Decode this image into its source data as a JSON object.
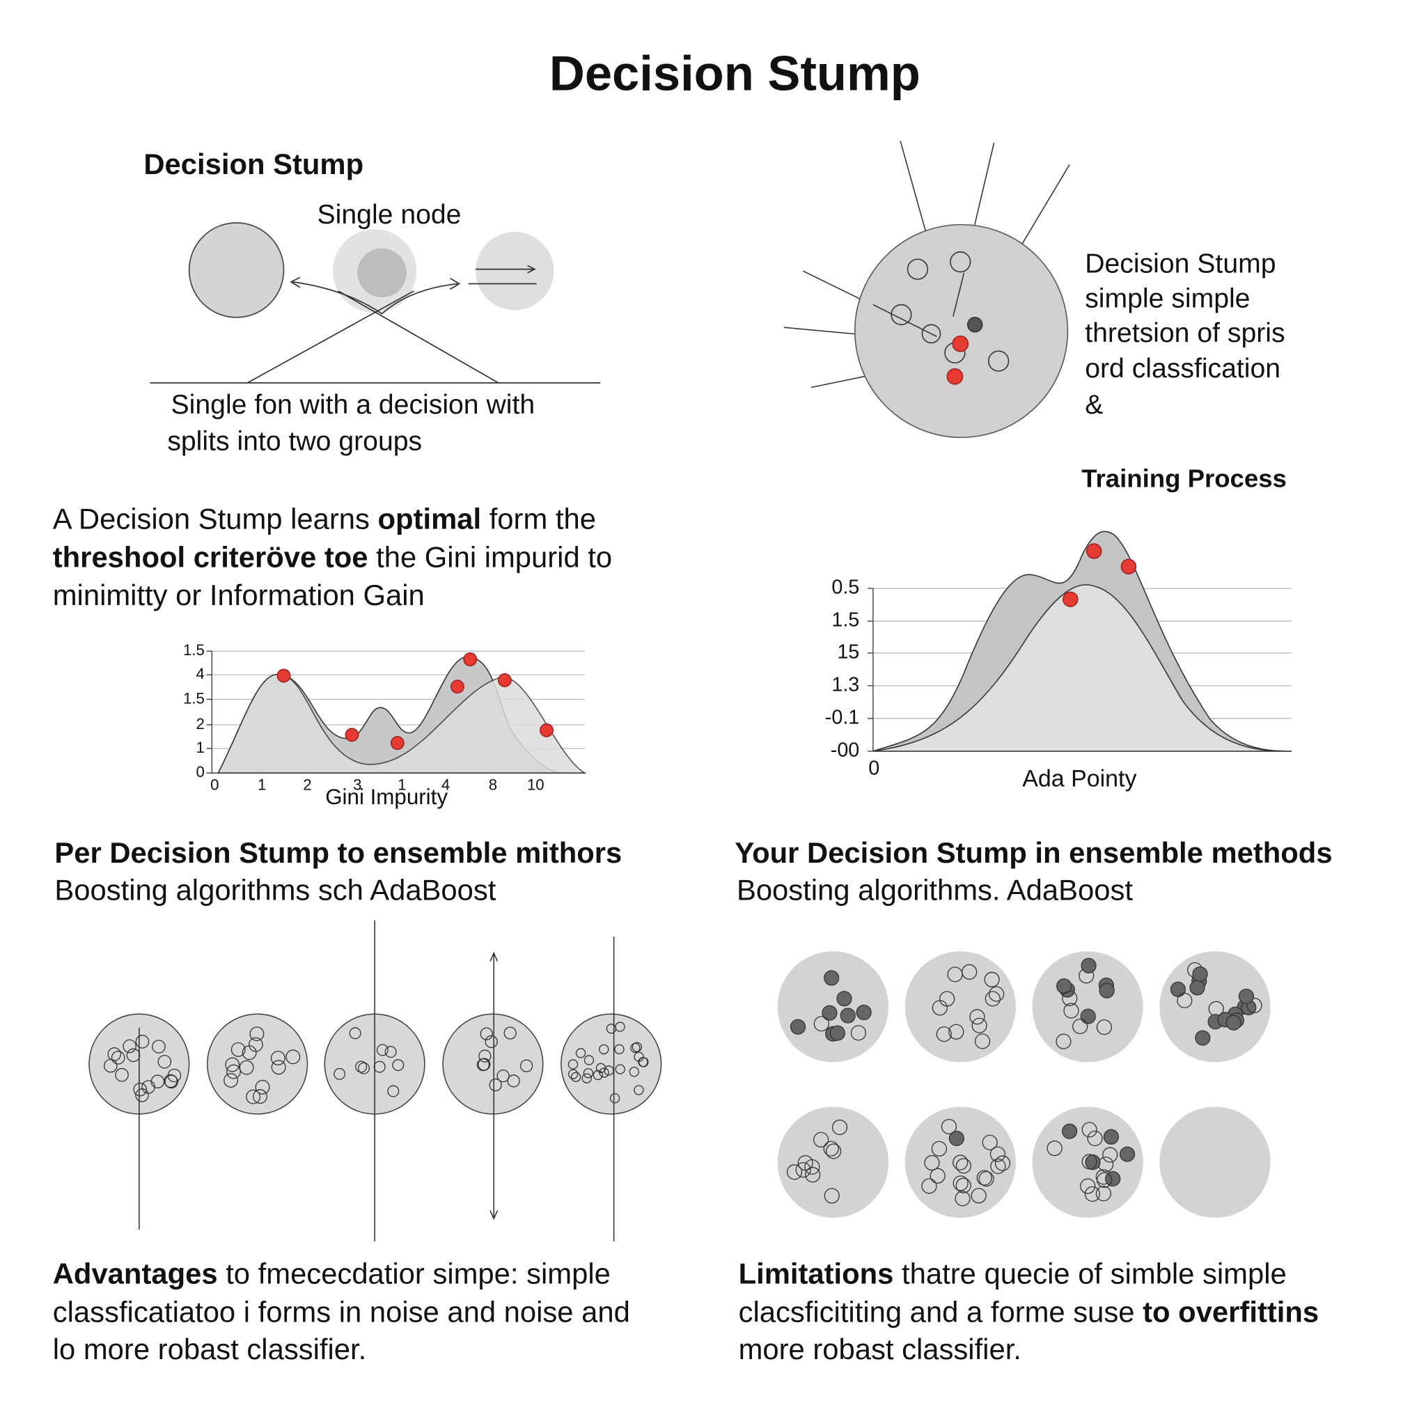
{
  "title": "Decision Stump",
  "stump_panel": {
    "heading": "Decision Stump",
    "node_label": "Single node",
    "caption": [
      "Single fon with a decision with",
      "splits into two groups"
    ]
  },
  "node_panel": {
    "lines": [
      "Decision Stump",
      "simple simple",
      "thretsion of spris",
      "ord classfication",
      "&"
    ]
  },
  "intro": [
    [
      {
        "text": "A Decision Stump learns ",
        "bold": false
      },
      {
        "text": "optimal",
        "bold": true
      },
      {
        "text": " form the",
        "bold": false
      }
    ],
    [
      {
        "text": "threshool criteröve toe",
        "bold": true
      },
      {
        "text": " the Gini impurid to",
        "bold": false
      }
    ],
    [
      {
        "text": "minimitty or Information Gain",
        "bold": false
      }
    ]
  ],
  "gini_plot": {
    "y_labels": [
      "1.5",
      "4",
      "1.5",
      "2",
      "1",
      "0"
    ],
    "x_labels": [
      "0",
      "1",
      "2",
      "3",
      "1",
      "4",
      "8",
      "10"
    ],
    "x_title": "Gini Impurity"
  },
  "training_plot": {
    "title": "Training Process",
    "y_labels": [
      "0.5",
      "1.5",
      "15",
      "1.3",
      "-0.1",
      "-00"
    ],
    "x_labels": [
      "0"
    ],
    "x_title": "Ada Pointy"
  },
  "ensemble_left": {
    "heading": "Per Decision Stump to ensemble mithors",
    "subheading": "Boosting algorithms sch AdaBoost"
  },
  "ensemble_right": {
    "heading": "Your Decision Stump in ensemble methods",
    "subheading": "Boosting algorithms. AdaBoost"
  },
  "advantages": [
    [
      {
        "text": "Advantages",
        "bold": true
      },
      {
        "text": " to fmececdatior simpe: simple",
        "bold": false
      }
    ],
    [
      {
        "text": "classficatiatoo i forms in noise and noise and",
        "bold": false
      }
    ],
    [
      {
        "text": "lo more robast classifier.",
        "bold": false
      }
    ]
  ],
  "limitations": [
    [
      {
        "text": "Limitations",
        "bold": true
      },
      {
        "text": " thatre quecie of simble simple",
        "bold": false
      }
    ],
    [
      {
        "text": "clacsficititing and a forme suse ",
        "bold": false
      },
      {
        "text": "to overfittins",
        "bold": true
      }
    ],
    [
      {
        "text": "more robast classifier.",
        "bold": false
      }
    ]
  ]
}
